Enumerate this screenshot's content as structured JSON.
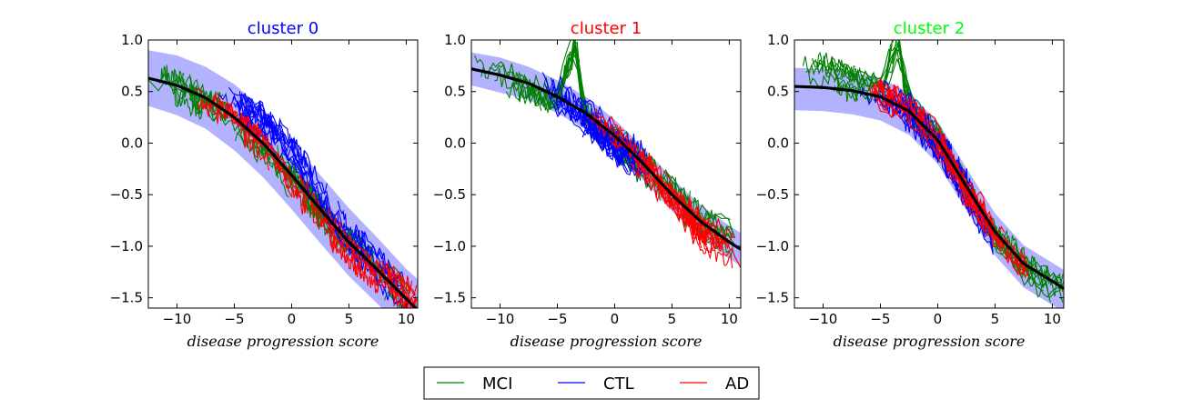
{
  "chart_data": [
    {
      "type": "line",
      "title": "cluster 0",
      "title_color": "#0000ff",
      "xlabel": "disease progression score",
      "ylabel": "",
      "xlim": [
        -12.5,
        11.0
      ],
      "ylim": [
        -1.6,
        1.0
      ],
      "xticks": [
        -10,
        -5,
        0,
        5,
        10
      ],
      "yticks": [
        1.0,
        0.5,
        0.0,
        -0.5,
        -1.0,
        -1.5
      ],
      "xtick_labels": [
        "−10",
        "−5",
        "0",
        "5",
        "10"
      ],
      "ytick_labels": [
        "1.0",
        "0.5",
        "0.0",
        "−0.5",
        "−1.0",
        "−1.5"
      ],
      "grid": false,
      "mean_curve": {
        "x": [
          -12.5,
          -10,
          -7.5,
          -5,
          -2.5,
          0,
          2.5,
          5,
          7.5,
          10,
          11
        ],
        "y": [
          0.63,
          0.56,
          0.44,
          0.25,
          0.0,
          -0.31,
          -0.64,
          -0.96,
          -1.23,
          -1.51,
          -1.62
        ]
      },
      "confidence_band": {
        "x": [
          -12.5,
          -10,
          -7.5,
          -5,
          -2.5,
          0,
          2.5,
          5,
          7.5,
          10,
          11
        ],
        "upper": [
          0.9,
          0.85,
          0.74,
          0.57,
          0.33,
          0.02,
          -0.31,
          -0.63,
          -0.92,
          -1.22,
          -1.32
        ],
        "lower": [
          0.36,
          0.27,
          0.14,
          -0.07,
          -0.33,
          -0.64,
          -0.97,
          -1.29,
          -1.56,
          -1.82,
          -1.92
        ]
      },
      "series": [
        {
          "name": "MCI",
          "color": "#008000",
          "approx_trend": {
            "x": [
              -12.5,
              -10,
              -5,
              -2.5,
              0,
              2.5,
              5,
              7.5,
              10
            ],
            "y": [
              0.62,
              0.55,
              0.25,
              -0.02,
              -0.35,
              -0.7,
              -1.0,
              -1.25,
              -1.5
            ]
          },
          "x_range": [
            -12.5,
            10.5
          ]
        },
        {
          "name": "CTL",
          "color": "#0000ff",
          "approx_trend": {
            "x": [
              -8,
              -5,
              -2.5,
              0,
              2.5,
              5,
              7.5,
              10
            ],
            "y": [
              0.5,
              0.4,
              0.2,
              -0.1,
              -0.5,
              -0.9,
              -1.2,
              -1.5
            ]
          },
          "x_range": [
            -8,
            10
          ]
        },
        {
          "name": "AD",
          "color": "#ff0000",
          "approx_trend": {
            "x": [
              -10,
              -5,
              -2.5,
              0,
              2.5,
              5,
              7.5,
              10,
              11
            ],
            "y": [
              0.55,
              0.25,
              0.0,
              -0.4,
              -0.75,
              -1.05,
              -1.3,
              -1.45,
              -1.5
            ]
          },
          "x_range": [
            -10,
            11
          ]
        }
      ]
    },
    {
      "type": "line",
      "title": "cluster 1",
      "title_color": "#ff0000",
      "xlabel": "disease progression score",
      "ylabel": "",
      "xlim": [
        -12.5,
        11.0
      ],
      "ylim": [
        -1.6,
        1.0
      ],
      "xticks": [
        -10,
        -5,
        0,
        5,
        10
      ],
      "yticks": [
        1.0,
        0.5,
        0.0,
        -0.5,
        -1.0,
        -1.5
      ],
      "xtick_labels": [
        "−10",
        "−5",
        "0",
        "5",
        "10"
      ],
      "ytick_labels": [
        "1.0",
        "0.5",
        "0.0",
        "−0.5",
        "−1.0",
        "−1.5"
      ],
      "grid": false,
      "mean_curve": {
        "x": [
          -12.5,
          -10,
          -7.5,
          -5,
          -2.5,
          0,
          2.5,
          5,
          7.5,
          10,
          11
        ],
        "y": [
          0.72,
          0.66,
          0.58,
          0.45,
          0.29,
          0.07,
          -0.2,
          -0.5,
          -0.76,
          -0.96,
          -1.03
        ]
      },
      "confidence_band": {
        "x": [
          -12.5,
          -10,
          -7.5,
          -5,
          -2.5,
          0,
          2.5,
          5,
          7.5,
          10,
          11
        ],
        "upper": [
          0.88,
          0.83,
          0.74,
          0.61,
          0.45,
          0.23,
          -0.04,
          -0.34,
          -0.6,
          -0.8,
          -0.87
        ],
        "lower": [
          0.56,
          0.49,
          0.42,
          0.29,
          0.13,
          -0.09,
          -0.36,
          -0.66,
          -0.92,
          -1.12,
          -1.19
        ]
      },
      "series": [
        {
          "name": "MCI",
          "color": "#008000",
          "approx_trend": {
            "x": [
              -12.5,
              -10,
              -5,
              -3.5,
              -2.5,
              0,
              2.5,
              5,
              7.5,
              10
            ],
            "y": [
              0.7,
              0.65,
              0.45,
              1.0,
              0.3,
              0.05,
              -0.22,
              -0.5,
              -0.75,
              -0.9
            ]
          },
          "x_range": [
            -12.5,
            10.5
          ]
        },
        {
          "name": "CTL",
          "color": "#0000ff",
          "approx_trend": {
            "x": [
              -7,
              -5,
              -2.5,
              0,
              2.5
            ],
            "y": [
              0.55,
              0.45,
              0.25,
              0.0,
              -0.2
            ]
          },
          "x_range": [
            -7,
            3
          ]
        },
        {
          "name": "AD",
          "color": "#ff0000",
          "approx_trend": {
            "x": [
              -3,
              0,
              2.5,
              5,
              7.5,
              10,
              11
            ],
            "y": [
              0.3,
              0.05,
              -0.2,
              -0.55,
              -0.85,
              -1.0,
              -1.1
            ]
          },
          "x_range": [
            -3,
            11
          ]
        }
      ]
    },
    {
      "type": "line",
      "title": "cluster 2",
      "title_color": "#00ff00",
      "xlabel": "disease progression score",
      "ylabel": "",
      "xlim": [
        -12.5,
        11.0
      ],
      "ylim": [
        -1.6,
        1.0
      ],
      "xticks": [
        -10,
        -5,
        0,
        5,
        10
      ],
      "yticks": [
        1.0,
        0.5,
        0.0,
        -0.5,
        -1.0,
        -1.5
      ],
      "xtick_labels": [
        "−10",
        "−5",
        "0",
        "5",
        "10"
      ],
      "ytick_labels": [
        "1.0",
        "0.5",
        "0.0",
        "−0.5",
        "−1.0",
        "−1.5"
      ],
      "grid": false,
      "mean_curve": {
        "x": [
          -12.5,
          -10,
          -7.5,
          -5,
          -2.5,
          0,
          2.5,
          5,
          7.5,
          10,
          11
        ],
        "y": [
          0.55,
          0.54,
          0.51,
          0.45,
          0.31,
          0.03,
          -0.42,
          -0.86,
          -1.17,
          -1.34,
          -1.41
        ]
      },
      "confidence_band": {
        "x": [
          -12.5,
          -10,
          -7.5,
          -5,
          -2.5,
          0,
          2.5,
          5,
          7.5,
          10,
          11
        ],
        "upper": [
          0.73,
          0.72,
          0.69,
          0.63,
          0.49,
          0.21,
          -0.24,
          -0.68,
          -0.99,
          -1.16,
          -1.23
        ],
        "lower": [
          0.32,
          0.31,
          0.28,
          0.22,
          0.08,
          -0.2,
          -0.65,
          -1.09,
          -1.4,
          -1.57,
          -1.64
        ]
      },
      "series": [
        {
          "name": "MCI",
          "color": "#008000",
          "approx_trend": {
            "x": [
              -12.5,
              -10,
              -7.5,
              -5,
              -3.5,
              -2.5,
              0,
              2.5,
              5,
              7.5,
              10
            ],
            "y": [
              0.75,
              0.7,
              0.6,
              0.5,
              1.0,
              0.35,
              0.05,
              -0.45,
              -0.9,
              -1.2,
              -1.35
            ]
          },
          "x_range": [
            -12.5,
            11
          ]
        },
        {
          "name": "CTL",
          "color": "#0000ff",
          "approx_trend": {
            "x": [
              -7,
              -5,
              -2.5,
              0,
              2.5,
              5
            ],
            "y": [
              0.5,
              0.45,
              0.3,
              0.0,
              -0.45,
              -1.0
            ]
          },
          "x_range": [
            -7,
            5
          ]
        },
        {
          "name": "AD",
          "color": "#ff0000",
          "approx_trend": {
            "x": [
              -6,
              -2.5,
              0,
              2.5,
              5,
              7.5
            ],
            "y": [
              0.5,
              0.3,
              0.0,
              -0.45,
              -0.85,
              -1.15
            ]
          },
          "x_range": [
            -6,
            8
          ]
        }
      ]
    }
  ],
  "legend": {
    "placement": "bottom-center",
    "entries": [
      {
        "label": "MCI",
        "color": "#008000"
      },
      {
        "label": "CTL",
        "color": "#0000ff"
      },
      {
        "label": "AD",
        "color": "#ff0000"
      }
    ]
  }
}
